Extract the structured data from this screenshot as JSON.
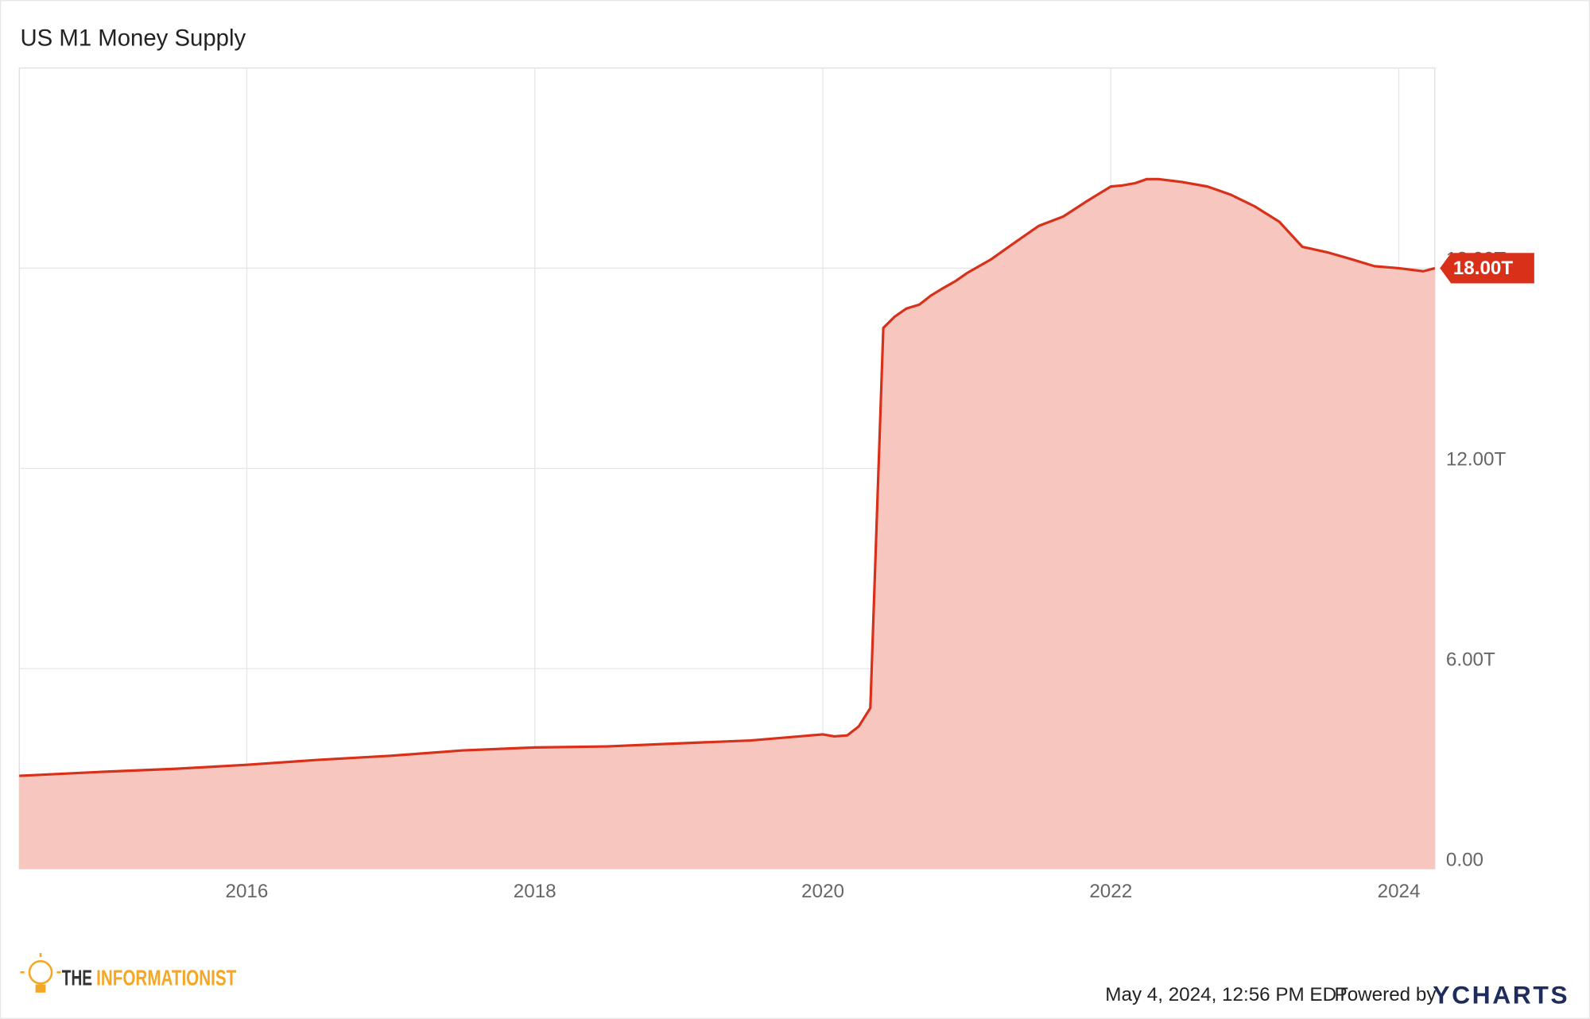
{
  "chart_data": {
    "type": "area",
    "title": "US M1 Money Supply",
    "x": [
      2014.42,
      2015.0,
      2015.5,
      2016.0,
      2016.5,
      2017.0,
      2017.5,
      2018.0,
      2018.5,
      2019.0,
      2019.5,
      2020.0,
      2020.08,
      2020.17,
      2020.25,
      2020.33,
      2020.42,
      2020.5,
      2020.58,
      2020.67,
      2020.75,
      2020.83,
      2020.92,
      2021.0,
      2021.17,
      2021.33,
      2021.5,
      2021.67,
      2021.83,
      2022.0,
      2022.08,
      2022.17,
      2022.25,
      2022.33,
      2022.5,
      2022.67,
      2022.83,
      2023.0,
      2023.17,
      2023.33,
      2023.5,
      2023.67,
      2023.83,
      2024.0,
      2024.17,
      2024.25
    ],
    "series": [
      {
        "name": "US M1 Money Supply",
        "color": "#d9301a",
        "fill": "#f7c7bf",
        "values": [
          2.79,
          2.91,
          3.0,
          3.12,
          3.27,
          3.39,
          3.55,
          3.64,
          3.67,
          3.76,
          3.85,
          4.03,
          3.97,
          4.0,
          4.27,
          4.82,
          16.21,
          16.55,
          16.79,
          16.91,
          17.18,
          17.39,
          17.61,
          17.85,
          18.27,
          18.76,
          19.27,
          19.55,
          20.0,
          20.45,
          20.48,
          20.55,
          20.67,
          20.67,
          20.58,
          20.45,
          20.21,
          19.85,
          19.39,
          18.64,
          18.48,
          18.27,
          18.06,
          18.0,
          17.91,
          18.0
        ]
      }
    ],
    "last_value_label": "18.00T",
    "xlim": [
      2014.42,
      2024.25
    ],
    "xticks": [
      2016,
      2018,
      2020,
      2022,
      2024
    ],
    "ylim": [
      0,
      24
    ],
    "yticks": [
      {
        "value": 0,
        "label": "0.00"
      },
      {
        "value": 6,
        "label": "6.00T"
      },
      {
        "value": 12,
        "label": "12.00T"
      },
      {
        "value": 18,
        "label": "18.00T"
      }
    ],
    "grid": true
  },
  "footer": {
    "logo_prefix": "THE",
    "logo_name": "INFORMATIONIST",
    "timestamp": "May 4, 2024, 12:56 PM EDT",
    "powered_by": "Powered by",
    "brand": "YCHARTS"
  }
}
